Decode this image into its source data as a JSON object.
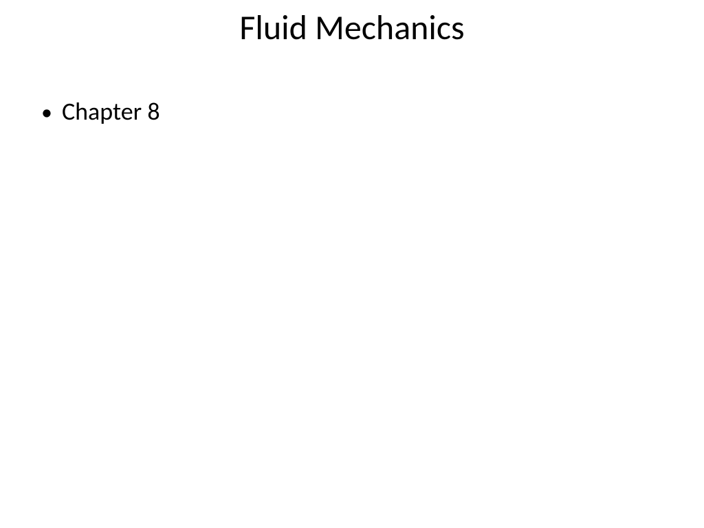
{
  "slide": {
    "title": "Fluid Mechanics",
    "bullets": [
      {
        "text": "Chapter 8"
      }
    ],
    "title_fontsize": 50,
    "bullet_fontsize": 36,
    "text_color": "#000000",
    "background_color": "#ffffff",
    "font_family": "Calibri"
  }
}
